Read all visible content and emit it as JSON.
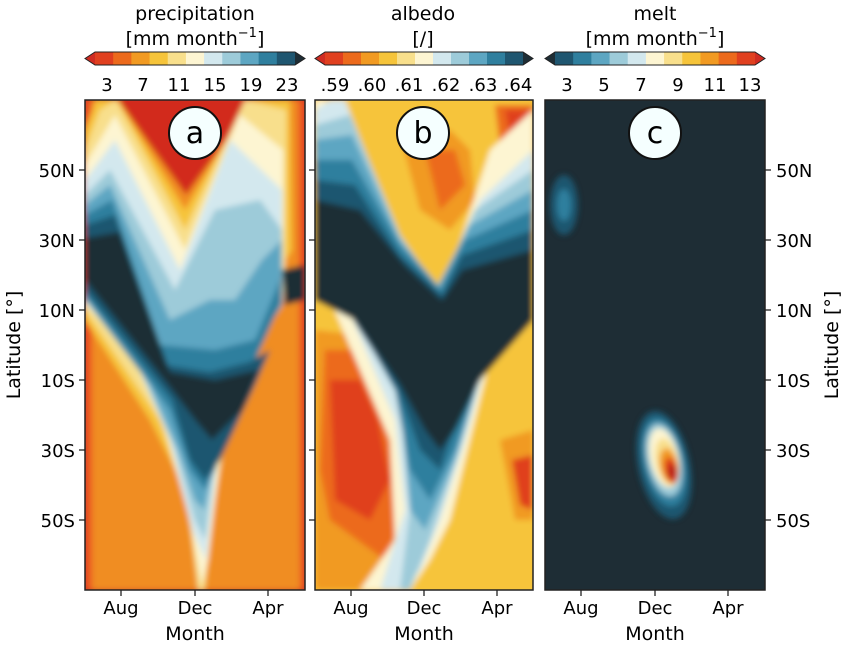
{
  "chart_data": [
    {
      "type": "heatmap",
      "panel_label": "a",
      "colorbar": {
        "title_line1": "precipitation",
        "title_line2": "[mm month",
        "title_sup": "−1",
        "title_close": "]",
        "ticks": [
          "3",
          "7",
          "11",
          "15",
          "19",
          "23"
        ],
        "colors": [
          "#cf2b21",
          "#e0401f",
          "#ec6a1c",
          "#f19a22",
          "#f6c43a",
          "#f8df8c",
          "#fdf5d2",
          "#d3e8ee",
          "#9dcbd9",
          "#5da6c2",
          "#2f7f9e",
          "#1f5670",
          "#1e2d35"
        ]
      },
      "x_ticks": [
        "Aug",
        "Dec",
        "Apr"
      ],
      "xlabel": "Month",
      "y_ticks": [
        "50N",
        "30N",
        "10N",
        "10S",
        "30S",
        "50S"
      ],
      "ylabel": "Latitude [°]",
      "pattern": "V-shaped band of high precipitation (ITCZ) migrating from ~20N in Jul to ~10S in Dec–Jan; dry (red) subtropics and high latitudes"
    },
    {
      "type": "heatmap",
      "panel_label": "b",
      "colorbar": {
        "title_line1": "albedo",
        "title_line2": "[/]",
        "ticks": [
          ".59",
          ".60",
          ".61",
          ".62",
          ".63",
          ".64"
        ],
        "colors": [
          "#cf2b21",
          "#e0401f",
          "#ec6a1c",
          "#f19a22",
          "#f6c43a",
          "#f8df8c",
          "#fdf5d2",
          "#d3e8ee",
          "#9dcbd9",
          "#5da6c2",
          "#2f7f9e",
          "#1f5670",
          "#1e2d35"
        ]
      },
      "x_ticks": [
        "Aug",
        "Dec",
        "Apr"
      ],
      "xlabel": "Month",
      "pattern": "High albedo band (dark) following the precipitation band, lower albedo (red/orange) elsewhere"
    },
    {
      "type": "heatmap",
      "panel_label": "c",
      "colorbar": {
        "title_line1": "melt",
        "title_line2": "[mm month",
        "title_sup": "−1",
        "title_close": "]",
        "ticks": [
          "3",
          "5",
          "7",
          "9",
          "11",
          "13"
        ],
        "colors": [
          "#1e2d35",
          "#1f5670",
          "#2f7f9e",
          "#5da6c2",
          "#9dcbd9",
          "#d3e8ee",
          "#fdf5d2",
          "#f8df8c",
          "#f6c43a",
          "#f19a22",
          "#ec6a1c",
          "#e0401f",
          "#cf2b21"
        ]
      },
      "x_ticks": [
        "Aug",
        "Dec",
        "Apr"
      ],
      "xlabel": "Month",
      "y_ticks": [
        "50N",
        "30N",
        "10N",
        "10S",
        "30S",
        "50S"
      ],
      "ylabel": "Latitude [°]",
      "pattern": "Near zero everywhere except a small blob at ~40N in Jul and a strong melt peak (~13) at ~35S in Jan"
    }
  ]
}
